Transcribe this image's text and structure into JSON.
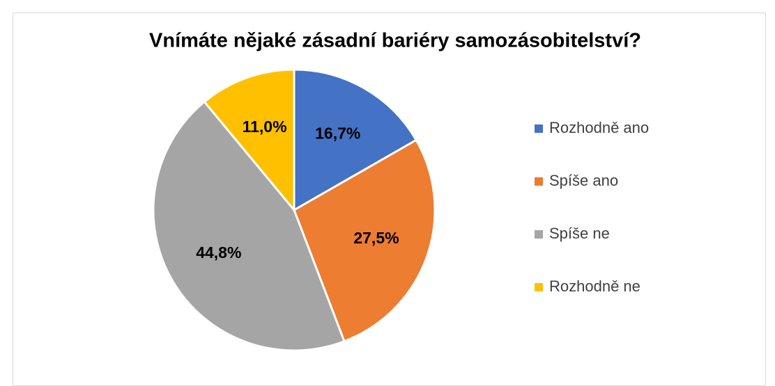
{
  "chart_data": {
    "type": "pie",
    "title": "Vnímáte nějaké zásadní bariéry samozásobitelství?",
    "categories": [
      "Rozhodně ano",
      "Spíše ano",
      "Spíše ne",
      "Rozhodně ne"
    ],
    "values": [
      16.7,
      27.5,
      44.8,
      11.0
    ],
    "value_labels": [
      "16,7%",
      "27,5%",
      "44,8%",
      "11,0%"
    ],
    "colors": [
      "#4472c4",
      "#ed7d31",
      "#a5a5a5",
      "#ffc000"
    ],
    "legend": "right"
  }
}
